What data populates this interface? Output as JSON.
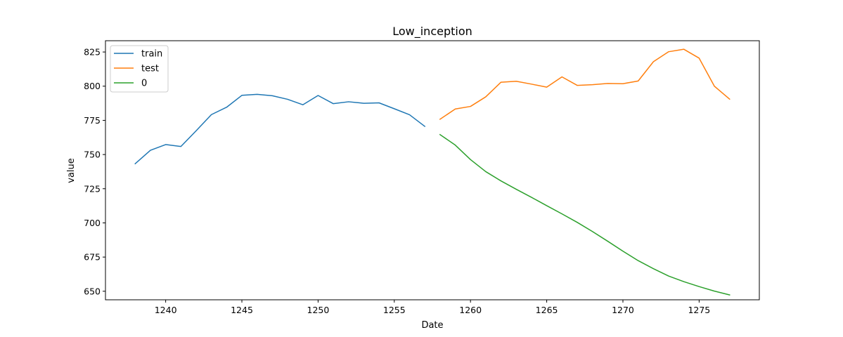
{
  "chart_data": {
    "type": "line",
    "title": "Low_inception",
    "xlabel": "Date",
    "ylabel": "value",
    "xlim": [
      1236.05,
      1278.95
    ],
    "ylim": [
      643.75,
      833.25
    ],
    "xticks": [
      1240,
      1245,
      1250,
      1255,
      1260,
      1265,
      1270,
      1275
    ],
    "yticks": [
      650,
      675,
      700,
      725,
      750,
      775,
      800,
      825
    ],
    "grid": false,
    "legend_position": "top-left",
    "series": [
      {
        "name": "train",
        "color": "#1f77b4",
        "x": [
          1238,
          1239,
          1240,
          1241,
          1242,
          1243,
          1244,
          1245,
          1246,
          1247,
          1248,
          1249,
          1250,
          1251,
          1252,
          1253,
          1254,
          1255,
          1256,
          1257
        ],
        "y": [
          743.3,
          753.1,
          757.3,
          755.9,
          767.4,
          779.2,
          784.6,
          793.3,
          794.0,
          793.0,
          790.4,
          786.4,
          793.2,
          787.2,
          788.6,
          787.5,
          787.8,
          783.5,
          779.1,
          770.6
        ]
      },
      {
        "name": "test",
        "color": "#ff7f0e",
        "x": [
          1258,
          1259,
          1260,
          1261,
          1262,
          1263,
          1264,
          1265,
          1266,
          1267,
          1268,
          1269,
          1270,
          1271,
          1272,
          1273,
          1274,
          1275,
          1276,
          1277
        ],
        "y": [
          775.8,
          783.3,
          785.2,
          792.2,
          802.9,
          803.6,
          801.5,
          799.3,
          806.8,
          800.6,
          801.1,
          802.0,
          801.8,
          803.8,
          817.9,
          825.2,
          827.0,
          820.5,
          800.0,
          790.5
        ]
      },
      {
        "name": "0",
        "color": "#2ca02c",
        "x": [
          1258,
          1259,
          1260,
          1261,
          1262,
          1263,
          1264,
          1265,
          1266,
          1267,
          1268,
          1269,
          1270,
          1271,
          1272,
          1273,
          1274,
          1275,
          1276,
          1277
        ],
        "y": [
          764.6,
          756.9,
          746.3,
          737.5,
          730.7,
          724.6,
          718.7,
          712.6,
          706.6,
          700.4,
          693.7,
          686.6,
          679.3,
          672.4,
          666.5,
          661.1,
          657.0,
          653.4,
          650.1,
          647.3
        ]
      }
    ]
  }
}
